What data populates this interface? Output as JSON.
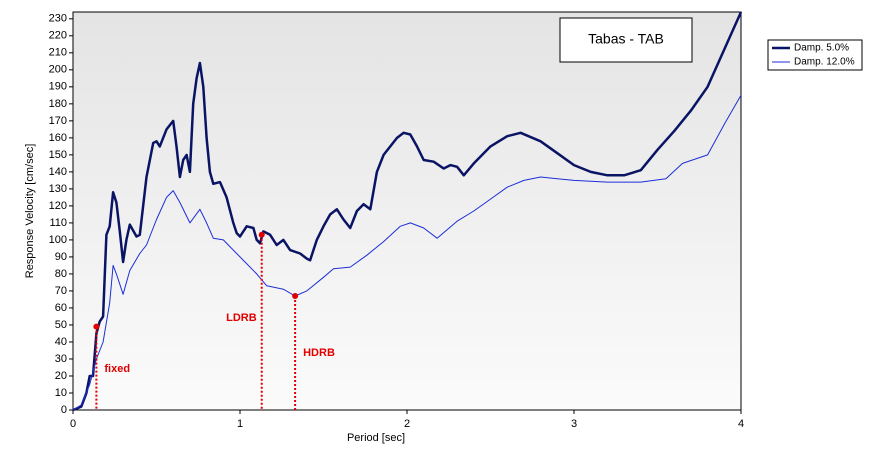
{
  "chart_data": {
    "type": "line",
    "title": "Tabas - TAB",
    "xlabel": "Period [sec]",
    "ylabel": "Response Velocity [cm/sec]",
    "xlim": [
      0,
      4
    ],
    "ylim": [
      0,
      234
    ],
    "xticks": [
      0,
      1,
      2,
      3,
      4
    ],
    "yticks": [
      0,
      10,
      20,
      30,
      40,
      50,
      60,
      70,
      80,
      90,
      100,
      110,
      120,
      130,
      140,
      150,
      160,
      170,
      180,
      190,
      200,
      210,
      220,
      230
    ],
    "legend": "outside-right",
    "series": [
      {
        "name": "Damp. 5.0%",
        "color": "#0a1464",
        "x": [
          0,
          0.05,
          0.08,
          0.1,
          0.12,
          0.14,
          0.16,
          0.18,
          0.2,
          0.22,
          0.24,
          0.26,
          0.28,
          0.3,
          0.32,
          0.34,
          0.38,
          0.4,
          0.44,
          0.48,
          0.5,
          0.52,
          0.56,
          0.6,
          0.62,
          0.64,
          0.66,
          0.68,
          0.7,
          0.72,
          0.74,
          0.76,
          0.78,
          0.8,
          0.82,
          0.84,
          0.88,
          0.92,
          0.96,
          0.98,
          1.0,
          1.04,
          1.08,
          1.1,
          1.12,
          1.14,
          1.18,
          1.22,
          1.26,
          1.3,
          1.36,
          1.4,
          1.42,
          1.46,
          1.5,
          1.54,
          1.58,
          1.62,
          1.66,
          1.7,
          1.74,
          1.78,
          1.82,
          1.86,
          1.9,
          1.94,
          1.98,
          2.02,
          2.06,
          2.1,
          2.16,
          2.22,
          2.26,
          2.3,
          2.34,
          2.4,
          2.5,
          2.6,
          2.68,
          2.8,
          2.9,
          3.0,
          3.1,
          3.2,
          3.3,
          3.4,
          3.5,
          3.6,
          3.7,
          3.8,
          3.9,
          4.0
        ],
        "values": [
          0,
          2,
          10,
          20,
          20,
          45,
          52,
          55,
          103,
          108,
          128,
          122,
          105,
          87,
          100,
          109,
          102,
          103,
          137,
          157,
          158,
          155,
          165,
          170,
          155,
          137,
          147,
          150,
          140,
          180,
          195,
          204,
          190,
          160,
          140,
          133,
          134,
          125,
          110,
          104,
          102,
          108,
          107,
          100,
          98,
          105,
          103,
          97,
          100,
          94,
          92,
          89,
          88,
          100,
          108,
          115,
          118,
          112,
          107,
          117,
          121,
          118,
          140,
          150,
          155,
          160,
          163,
          162,
          155,
          147,
          146,
          142,
          144,
          143,
          138,
          145,
          155,
          161,
          163,
          158,
          151,
          144,
          140,
          138,
          138,
          141,
          153,
          164,
          176,
          190,
          212,
          234
        ]
      },
      {
        "name": "Damp. 12.0%",
        "color": "#1c2ed8",
        "x": [
          0,
          0.05,
          0.1,
          0.14,
          0.18,
          0.22,
          0.24,
          0.26,
          0.3,
          0.34,
          0.4,
          0.44,
          0.5,
          0.56,
          0.6,
          0.64,
          0.7,
          0.76,
          0.8,
          0.84,
          0.9,
          1.0,
          1.1,
          1.16,
          1.26,
          1.33,
          1.4,
          1.5,
          1.56,
          1.66,
          1.76,
          1.86,
          1.96,
          2.02,
          2.1,
          2.18,
          2.3,
          2.4,
          2.5,
          2.6,
          2.7,
          2.8,
          2.9,
          3.0,
          3.2,
          3.4,
          3.55,
          3.65,
          3.8,
          3.9,
          4.0
        ],
        "values": [
          0,
          3,
          15,
          30,
          40,
          63,
          85,
          80,
          68,
          82,
          92,
          97,
          112,
          125,
          129,
          122,
          110,
          118,
          110,
          101,
          100,
          90,
          80,
          73,
          71,
          67,
          70,
          78,
          83,
          84,
          91,
          99,
          108,
          110,
          107,
          101,
          111,
          117,
          124,
          131,
          135,
          137,
          136,
          135,
          134,
          134,
          136,
          145,
          150,
          168,
          185
        ]
      }
    ],
    "annotations": [
      {
        "text": "fixed",
        "x": 0.14,
        "y": 49,
        "color": "#e00000"
      },
      {
        "text": "LDRB",
        "x": 1.13,
        "y": 103,
        "color": "#e00000"
      },
      {
        "text": "HDRB",
        "x": 1.33,
        "y": 67,
        "color": "#e00000"
      }
    ]
  }
}
